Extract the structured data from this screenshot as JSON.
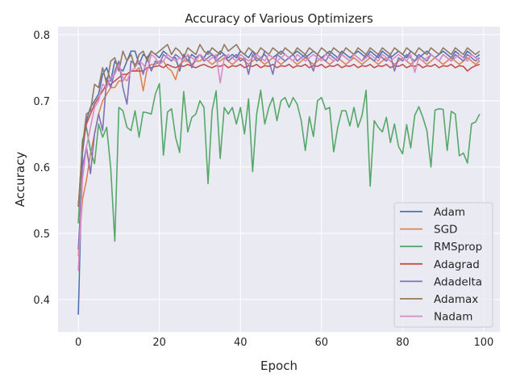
{
  "chart_data": {
    "type": "line",
    "title": "Accuracy of Various Optimizers",
    "xlabel": "Epoch",
    "ylabel": "Accuracy",
    "xlim": [
      -5,
      104
    ],
    "ylim": [
      0.351,
      0.812
    ],
    "xticks": [
      0,
      20,
      40,
      60,
      80,
      100
    ],
    "yticks": [
      0.4,
      0.5,
      0.6,
      0.7,
      0.8
    ],
    "xtick_labels": [
      "0",
      "20",
      "40",
      "60",
      "80",
      "100"
    ],
    "ytick_labels": [
      "0.4",
      "0.5",
      "0.6",
      "0.7",
      "0.8"
    ],
    "grid": true,
    "legend_position": "lower-right",
    "series": [
      {
        "name": "Adam",
        "color": "#4c72b0",
        "values": [
          0.377,
          0.62,
          0.67,
          0.69,
          0.7,
          0.71,
          0.74,
          0.75,
          0.73,
          0.76,
          0.75,
          0.745,
          0.76,
          0.775,
          0.775,
          0.755,
          0.77,
          0.765,
          0.775,
          0.77,
          0.765,
          0.775,
          0.77,
          0.765,
          0.765,
          0.745,
          0.77,
          0.76,
          0.77,
          0.765,
          0.77,
          0.765,
          0.775,
          0.77,
          0.765,
          0.775,
          0.77,
          0.765,
          0.77,
          0.765,
          0.775,
          0.77,
          0.765,
          0.775,
          0.765,
          0.76,
          0.775,
          0.77,
          0.765,
          0.77,
          0.775,
          0.77,
          0.765,
          0.77,
          0.775,
          0.77,
          0.765,
          0.77,
          0.775,
          0.77,
          0.765,
          0.77,
          0.775,
          0.77,
          0.765,
          0.775,
          0.77,
          0.765,
          0.77,
          0.775,
          0.77,
          0.765,
          0.775,
          0.77,
          0.765,
          0.775,
          0.77,
          0.765,
          0.77,
          0.775,
          0.77,
          0.765,
          0.775,
          0.77,
          0.765,
          0.77,
          0.775,
          0.77,
          0.765,
          0.77,
          0.775,
          0.77,
          0.765,
          0.775,
          0.77,
          0.765,
          0.775,
          0.77,
          0.765,
          0.77
        ]
      },
      {
        "name": "SGD",
        "color": "#dd8452",
        "values": [
          0.465,
          0.55,
          0.58,
          0.62,
          0.65,
          0.68,
          0.7,
          0.71,
          0.72,
          0.72,
          0.73,
          0.73,
          0.74,
          0.745,
          0.745,
          0.75,
          0.715,
          0.75,
          0.755,
          0.755,
          0.76,
          0.76,
          0.75,
          0.745,
          0.732,
          0.755,
          0.76,
          0.76,
          0.755,
          0.76,
          0.76,
          0.765,
          0.76,
          0.755,
          0.76,
          0.76,
          0.765,
          0.76,
          0.755,
          0.76,
          0.765,
          0.76,
          0.755,
          0.76,
          0.765,
          0.76,
          0.755,
          0.76,
          0.765,
          0.76,
          0.755,
          0.76,
          0.765,
          0.76,
          0.755,
          0.76,
          0.765,
          0.76,
          0.755,
          0.76,
          0.765,
          0.76,
          0.755,
          0.76,
          0.765,
          0.76,
          0.755,
          0.76,
          0.765,
          0.76,
          0.755,
          0.76,
          0.765,
          0.76,
          0.755,
          0.76,
          0.765,
          0.76,
          0.755,
          0.76,
          0.765,
          0.76,
          0.755,
          0.76,
          0.765,
          0.76,
          0.755,
          0.76,
          0.765,
          0.76,
          0.755,
          0.76,
          0.765,
          0.76,
          0.755,
          0.76,
          0.765,
          0.76,
          0.755,
          0.76
        ]
      },
      {
        "name": "RMSprop",
        "color": "#55a868",
        "values": [
          0.515,
          0.64,
          0.66,
          0.625,
          0.605,
          0.665,
          0.645,
          0.66,
          0.598,
          0.488,
          0.69,
          0.685,
          0.66,
          0.655,
          0.685,
          0.645,
          0.683,
          0.682,
          0.68,
          0.71,
          0.726,
          0.618,
          0.683,
          0.688,
          0.645,
          0.622,
          0.714,
          0.653,
          0.675,
          0.68,
          0.7,
          0.69,
          0.575,
          0.685,
          0.715,
          0.613,
          0.69,
          0.68,
          0.69,
          0.665,
          0.69,
          0.65,
          0.703,
          0.593,
          0.68,
          0.716,
          0.665,
          0.69,
          0.705,
          0.67,
          0.7,
          0.705,
          0.69,
          0.705,
          0.695,
          0.67,
          0.625,
          0.676,
          0.646,
          0.7,
          0.705,
          0.687,
          0.69,
          0.623,
          0.66,
          0.685,
          0.685,
          0.662,
          0.69,
          0.66,
          0.678,
          0.716,
          0.571,
          0.67,
          0.66,
          0.653,
          0.675,
          0.637,
          0.665,
          0.631,
          0.62,
          0.664,
          0.629,
          0.678,
          0.691,
          0.675,
          0.655,
          0.6,
          0.686,
          0.688,
          0.687,
          0.625,
          0.684,
          0.68,
          0.617,
          0.621,
          0.606,
          0.665,
          0.668,
          0.68
        ]
      },
      {
        "name": "Adagrad",
        "color": "#c44e52",
        "values": [
          0.54,
          0.63,
          0.665,
          0.68,
          0.695,
          0.705,
          0.715,
          0.725,
          0.725,
          0.73,
          0.735,
          0.74,
          0.74,
          0.745,
          0.745,
          0.745,
          0.745,
          0.75,
          0.75,
          0.752,
          0.753,
          0.75,
          0.755,
          0.752,
          0.75,
          0.753,
          0.752,
          0.755,
          0.752,
          0.75,
          0.753,
          0.755,
          0.752,
          0.75,
          0.753,
          0.752,
          0.755,
          0.75,
          0.753,
          0.752,
          0.755,
          0.75,
          0.753,
          0.752,
          0.755,
          0.75,
          0.753,
          0.752,
          0.755,
          0.75,
          0.753,
          0.752,
          0.755,
          0.75,
          0.753,
          0.752,
          0.755,
          0.75,
          0.753,
          0.752,
          0.755,
          0.75,
          0.753,
          0.752,
          0.755,
          0.75,
          0.753,
          0.752,
          0.755,
          0.75,
          0.753,
          0.752,
          0.755,
          0.75,
          0.753,
          0.752,
          0.755,
          0.75,
          0.753,
          0.752,
          0.755,
          0.75,
          0.753,
          0.752,
          0.755,
          0.75,
          0.753,
          0.752,
          0.755,
          0.75,
          0.753,
          0.752,
          0.755,
          0.75,
          0.753,
          0.752,
          0.745,
          0.75,
          0.753,
          0.755
        ]
      },
      {
        "name": "Adadelta",
        "color": "#8172b3",
        "values": [
          0.475,
          0.6,
          0.63,
          0.59,
          0.65,
          0.68,
          0.655,
          0.735,
          0.72,
          0.745,
          0.76,
          0.72,
          0.695,
          0.76,
          0.755,
          0.76,
          0.74,
          0.765,
          0.745,
          0.76,
          0.755,
          0.77,
          0.765,
          0.76,
          0.77,
          0.765,
          0.76,
          0.77,
          0.75,
          0.765,
          0.77,
          0.76,
          0.765,
          0.77,
          0.76,
          0.765,
          0.77,
          0.76,
          0.765,
          0.77,
          0.76,
          0.765,
          0.74,
          0.77,
          0.76,
          0.765,
          0.77,
          0.76,
          0.74,
          0.77,
          0.765,
          0.76,
          0.765,
          0.77,
          0.76,
          0.765,
          0.77,
          0.76,
          0.745,
          0.77,
          0.765,
          0.76,
          0.77,
          0.765,
          0.76,
          0.77,
          0.765,
          0.76,
          0.77,
          0.765,
          0.76,
          0.77,
          0.765,
          0.76,
          0.77,
          0.765,
          0.76,
          0.77,
          0.745,
          0.765,
          0.76,
          0.77,
          0.765,
          0.76,
          0.77,
          0.765,
          0.76,
          0.77,
          0.765,
          0.76,
          0.77,
          0.765,
          0.76,
          0.77,
          0.765,
          0.76,
          0.77,
          0.765,
          0.76,
          0.765
        ]
      },
      {
        "name": "Adamax",
        "color": "#937860",
        "values": [
          0.54,
          0.63,
          0.68,
          0.685,
          0.725,
          0.72,
          0.75,
          0.725,
          0.76,
          0.765,
          0.745,
          0.775,
          0.76,
          0.77,
          0.75,
          0.77,
          0.775,
          0.76,
          0.775,
          0.77,
          0.775,
          0.78,
          0.785,
          0.77,
          0.78,
          0.775,
          0.765,
          0.78,
          0.775,
          0.77,
          0.785,
          0.775,
          0.77,
          0.78,
          0.775,
          0.77,
          0.785,
          0.775,
          0.78,
          0.785,
          0.775,
          0.77,
          0.78,
          0.775,
          0.77,
          0.78,
          0.775,
          0.77,
          0.78,
          0.775,
          0.77,
          0.78,
          0.775,
          0.77,
          0.78,
          0.775,
          0.77,
          0.78,
          0.775,
          0.77,
          0.78,
          0.775,
          0.77,
          0.78,
          0.775,
          0.77,
          0.78,
          0.775,
          0.77,
          0.78,
          0.775,
          0.77,
          0.78,
          0.775,
          0.77,
          0.78,
          0.775,
          0.77,
          0.78,
          0.775,
          0.77,
          0.78,
          0.775,
          0.77,
          0.78,
          0.775,
          0.77,
          0.78,
          0.775,
          0.77,
          0.78,
          0.775,
          0.77,
          0.78,
          0.775,
          0.77,
          0.78,
          0.775,
          0.77,
          0.775
        ]
      },
      {
        "name": "Nadam",
        "color": "#da8bc3",
        "values": [
          0.443,
          0.58,
          0.63,
          0.66,
          0.69,
          0.7,
          0.725,
          0.72,
          0.735,
          0.74,
          0.755,
          0.735,
          0.73,
          0.745,
          0.75,
          0.76,
          0.755,
          0.745,
          0.77,
          0.765,
          0.755,
          0.76,
          0.77,
          0.765,
          0.76,
          0.765,
          0.76,
          0.77,
          0.765,
          0.76,
          0.77,
          0.765,
          0.76,
          0.765,
          0.77,
          0.727,
          0.765,
          0.77,
          0.765,
          0.76,
          0.77,
          0.765,
          0.76,
          0.765,
          0.77,
          0.765,
          0.76,
          0.77,
          0.765,
          0.76,
          0.765,
          0.77,
          0.765,
          0.76,
          0.77,
          0.765,
          0.76,
          0.765,
          0.77,
          0.765,
          0.76,
          0.77,
          0.765,
          0.76,
          0.765,
          0.77,
          0.765,
          0.76,
          0.77,
          0.765,
          0.76,
          0.765,
          0.77,
          0.765,
          0.76,
          0.77,
          0.765,
          0.76,
          0.765,
          0.77,
          0.765,
          0.76,
          0.77,
          0.743,
          0.765,
          0.76,
          0.765,
          0.77,
          0.765,
          0.76,
          0.77,
          0.765,
          0.76,
          0.765,
          0.77,
          0.765,
          0.76,
          0.77,
          0.765,
          0.76
        ]
      }
    ]
  }
}
